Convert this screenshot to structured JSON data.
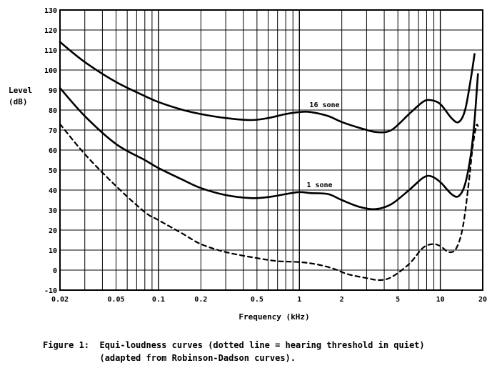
{
  "chart_data": {
    "type": "line",
    "xlabel": "Frequency (kHz)",
    "ylabel_line1": "Level",
    "ylabel_line2": "(dB)",
    "xscale": "log",
    "xlim": [
      0.02,
      20
    ],
    "ylim": [
      -10,
      130
    ],
    "grid": true,
    "x_tick_labels": [
      {
        "value": 0.02,
        "label": "0.02"
      },
      {
        "value": 0.05,
        "label": "0.05"
      },
      {
        "value": 0.1,
        "label": "0.1"
      },
      {
        "value": 0.2,
        "label": "0.2"
      },
      {
        "value": 0.5,
        "label": "0.5"
      },
      {
        "value": 1,
        "label": "1"
      },
      {
        "value": 2,
        "label": "2"
      },
      {
        "value": 5,
        "label": "5"
      },
      {
        "value": 10,
        "label": "10"
      },
      {
        "value": 20,
        "label": "20"
      }
    ],
    "y_ticks": [
      -10,
      0,
      10,
      20,
      30,
      40,
      50,
      60,
      70,
      80,
      90,
      100,
      110,
      120,
      130
    ],
    "series": [
      {
        "name": "16 sone",
        "style": "solid",
        "x": [
          0.02,
          0.03,
          0.05,
          0.08,
          0.1,
          0.15,
          0.2,
          0.3,
          0.45,
          0.6,
          0.8,
          1.0,
          1.2,
          1.6,
          2.0,
          2.7,
          3.5,
          4.5,
          6.0,
          7.5,
          8.5,
          10.0,
          12.0,
          13.5,
          15.0,
          16.5,
          17.5
        ],
        "y": [
          114,
          104,
          94,
          87,
          84,
          80,
          78,
          76,
          75,
          76,
          78,
          79,
          79,
          77,
          74,
          71,
          69,
          70,
          78,
          84,
          85,
          83,
          76,
          74,
          80,
          96,
          108
        ]
      },
      {
        "name": "1 sone",
        "style": "solid",
        "x": [
          0.02,
          0.03,
          0.05,
          0.08,
          0.1,
          0.15,
          0.2,
          0.3,
          0.45,
          0.6,
          0.8,
          1.0,
          1.2,
          1.6,
          2.0,
          2.7,
          3.5,
          4.5,
          6.0,
          7.5,
          8.5,
          10.0,
          12.0,
          13.5,
          15.0,
          16.5,
          17.5,
          18.5
        ],
        "y": [
          91,
          77,
          63,
          55,
          51,
          45,
          41,
          37.5,
          36,
          36.5,
          38,
          39,
          38.5,
          38,
          35,
          31.5,
          30.5,
          33,
          40,
          46,
          47,
          44,
          38,
          37,
          43,
          58,
          75,
          98
        ]
      },
      {
        "name": "",
        "style": "dotted",
        "x": [
          0.02,
          0.03,
          0.05,
          0.08,
          0.1,
          0.15,
          0.2,
          0.3,
          0.5,
          0.7,
          1.0,
          1.3,
          1.7,
          2.2,
          3.0,
          3.7,
          4.5,
          6.0,
          7.5,
          8.8,
          10.0,
          11.5,
          13.0,
          14.5,
          16.0,
          17.0,
          18.0,
          18.5
        ],
        "y": [
          73,
          58,
          42,
          29,
          25,
          18,
          13,
          9,
          6,
          4.5,
          4,
          3,
          1,
          -2,
          -4,
          -5,
          -3.5,
          3,
          11,
          13,
          12,
          9,
          11,
          22,
          45,
          62,
          72,
          72
        ]
      }
    ],
    "annotations": [
      {
        "text": "16 sone",
        "x": 1.1,
        "y": 80
      },
      {
        "text": "1 sone",
        "x": 1.05,
        "y": 40
      }
    ]
  },
  "caption": {
    "line1": "Figure 1:  Equi-loudness curves (dotted line = hearing threshold in quiet)",
    "line2": "           (adapted from Robinson-Dadson curves)."
  }
}
